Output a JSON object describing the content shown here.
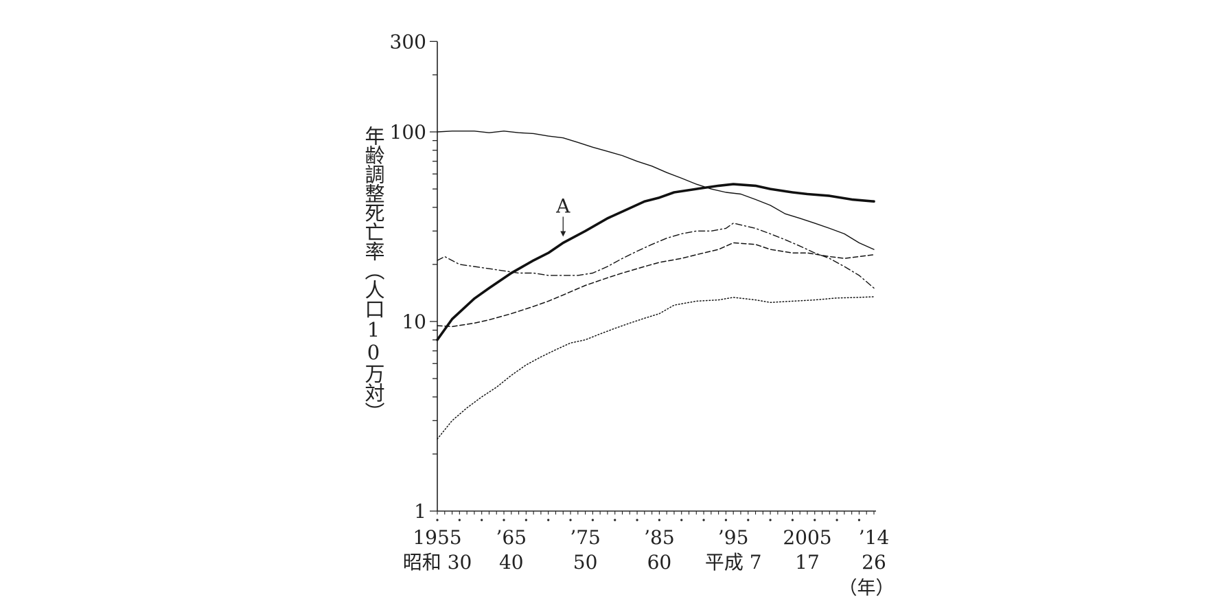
{
  "chart_data": {
    "type": "line",
    "ylabel": "年齢調整死亡率（人口10万対）",
    "y_scale": "log",
    "ylim": [
      1,
      300
    ],
    "y_ticks_labeled": [
      {
        "value": 1,
        "label": "1"
      },
      {
        "value": 10,
        "label": "10"
      },
      {
        "value": 100,
        "label": "100"
      },
      {
        "value": 300,
        "label": "300"
      }
    ],
    "xlim": [
      1955,
      2014
    ],
    "x_ticks_labeled": [
      {
        "year": 1955,
        "line1": "1955",
        "line2": "昭和 30"
      },
      {
        "year": 1965,
        "line1": "’65",
        "line2": "40"
      },
      {
        "year": 1975,
        "line1": "’75",
        "line2": "50"
      },
      {
        "year": 1985,
        "line1": "’85",
        "line2": "60"
      },
      {
        "year": 1995,
        "line1": "’95",
        "line2": "平成 7"
      },
      {
        "year": 2005,
        "line1": "2005",
        "line2": "17"
      },
      {
        "year": 2014,
        "line1": "’14",
        "line2": "26"
      }
    ],
    "xunit": "（年）",
    "annotation": {
      "label": "A",
      "year": 1972
    },
    "series": [
      {
        "name": "A",
        "style": "solid-thick",
        "x": [
          1955,
          1957,
          1960,
          1962,
          1965,
          1968,
          1970,
          1972,
          1975,
          1978,
          1980,
          1983,
          1985,
          1987,
          1990,
          1993,
          1995,
          1998,
          2000,
          2003,
          2005,
          2008,
          2011,
          2014
        ],
        "y": [
          8,
          10.3,
          13.2,
          15,
          18,
          21,
          23,
          26,
          30,
          35,
          38,
          43,
          45,
          48,
          50,
          52,
          53,
          52,
          50,
          48,
          47,
          46,
          44,
          43
        ]
      },
      {
        "name": "",
        "style": "solid-thin",
        "x": [
          1955,
          1957,
          1960,
          1962,
          1964,
          1966,
          1968,
          1970,
          1972,
          1974,
          1976,
          1978,
          1980,
          1982,
          1984,
          1986,
          1988,
          1990,
          1992,
          1994,
          1996,
          1998,
          2000,
          2002,
          2004,
          2006,
          2008,
          2010,
          2012,
          2014
        ],
        "y": [
          100,
          101,
          101,
          99,
          101,
          99,
          98,
          95,
          93,
          88,
          83,
          79,
          75,
          70,
          66,
          61,
          57,
          53,
          50,
          48,
          47,
          44,
          41,
          37,
          35,
          33,
          31,
          29,
          26,
          24
        ]
      },
      {
        "name": "",
        "style": "dash-dot",
        "x": [
          1955,
          1956,
          1958,
          1960,
          1962,
          1964,
          1966,
          1968,
          1970,
          1972,
          1974,
          1976,
          1978,
          1980,
          1982,
          1984,
          1986,
          1988,
          1990,
          1992,
          1994,
          1995,
          1998,
          2000,
          2002,
          2004,
          2006,
          2008,
          2010,
          2012,
          2014
        ],
        "y": [
          21,
          22,
          20,
          19.5,
          19,
          18.5,
          18,
          18,
          17.5,
          17.5,
          17.5,
          18,
          19.5,
          21.5,
          23.5,
          25.5,
          27.5,
          29,
          30,
          30,
          31,
          33,
          31,
          29,
          27,
          25,
          23,
          21.5,
          19.5,
          17.5,
          15
        ]
      },
      {
        "name": "",
        "style": "dashed",
        "x": [
          1955,
          1957,
          1960,
          1962,
          1965,
          1968,
          1970,
          1972,
          1975,
          1978,
          1980,
          1983,
          1985,
          1988,
          1990,
          1993,
          1995,
          1998,
          2000,
          2003,
          2005,
          2008,
          2010,
          2012,
          2014
        ],
        "y": [
          9.5,
          9.4,
          9.8,
          10.2,
          11,
          12,
          12.8,
          13.8,
          15.5,
          17,
          18,
          19.5,
          20.5,
          21.5,
          22.5,
          24,
          26,
          25.5,
          24,
          23,
          23,
          22,
          21.5,
          22,
          22.5
        ]
      },
      {
        "name": "",
        "style": "dotted",
        "x": [
          1955,
          1957,
          1959,
          1961,
          1963,
          1965,
          1967,
          1969,
          1971,
          1973,
          1975,
          1977,
          1979,
          1981,
          1983,
          1985,
          1987,
          1990,
          1993,
          1995,
          1998,
          2000,
          2003,
          2006,
          2009,
          2012,
          2014
        ],
        "y": [
          2.4,
          3.0,
          3.5,
          4.0,
          4.5,
          5.2,
          5.9,
          6.5,
          7.1,
          7.7,
          8.0,
          8.6,
          9.2,
          9.8,
          10.4,
          11.0,
          12.2,
          12.8,
          13.0,
          13.4,
          13.0,
          12.6,
          12.8,
          13.0,
          13.3,
          13.4,
          13.5
        ]
      }
    ]
  }
}
